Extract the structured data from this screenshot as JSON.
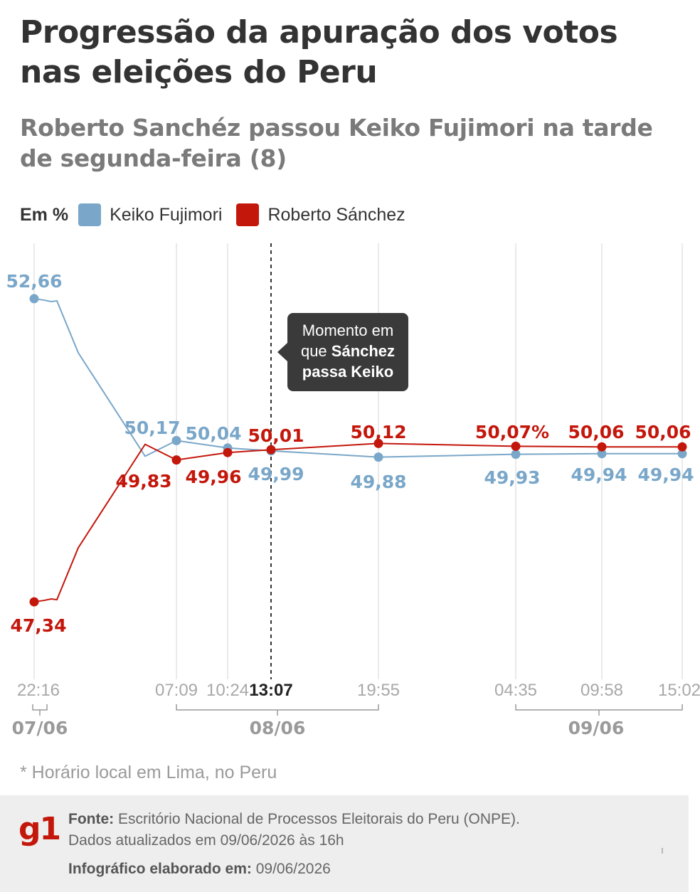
{
  "title": "Progressão da apuração dos votos nas eleições do Peru",
  "subtitle": "Roberto Sanchéz passou Keiko Fujimori na tarde de segunda-feira (8)",
  "legend": {
    "unit": "Em %",
    "items": [
      {
        "label": "Keiko Fujimori",
        "color": "#7aa7c9"
      },
      {
        "label": "Roberto Sánchez",
        "color": "#c4170c"
      }
    ]
  },
  "annotation": {
    "line1": "Momento em",
    "line2_prefix": "que ",
    "line2_bold": "Sánchez",
    "line3_bold": "passa Keiko"
  },
  "chart_data": {
    "type": "line",
    "title": "Progressão da apuração dos votos nas eleições do Peru",
    "ylabel": "Em %",
    "x_labels": [
      {
        "label": "22:16",
        "date": "07/06"
      },
      {
        "label": "07:09",
        "date": "08/06"
      },
      {
        "label": "10:24",
        "date": "08/06"
      },
      {
        "label": "13:07",
        "date": "08/06",
        "highlight": true
      },
      {
        "label": "19:55",
        "date": "08/06"
      },
      {
        "label": "04:35",
        "date": "09/06"
      },
      {
        "label": "09:58",
        "date": "09/06"
      },
      {
        "label": "15:02",
        "date": "09/06"
      }
    ],
    "date_groups": [
      "07/06",
      "08/06",
      "09/06"
    ],
    "series": [
      {
        "name": "Keiko Fujimori",
        "color": "#7aa7c9",
        "points": [
          {
            "x": "07/06 22:16",
            "y": 52.66,
            "label": "52,66"
          },
          {
            "x": "08/06 07:09",
            "y": 50.17,
            "label": "50,17"
          },
          {
            "x": "08/06 10:24",
            "y": 50.04,
            "label": "50,04"
          },
          {
            "x": "08/06 13:07",
            "y": 49.99,
            "label": "49,99"
          },
          {
            "x": "08/06 19:55",
            "y": 49.88,
            "label": "49,88"
          },
          {
            "x": "09/06 04:35",
            "y": 49.93,
            "label": "49,93"
          },
          {
            "x": "09/06 09:58",
            "y": 49.94,
            "label": "49,94"
          },
          {
            "x": "09/06 15:02",
            "y": 49.94,
            "label": "49,94"
          }
        ]
      },
      {
        "name": "Roberto Sánchez",
        "color": "#c4170c",
        "points": [
          {
            "x": "07/06 22:16",
            "y": 47.34,
            "label": "47,34"
          },
          {
            "x": "08/06 07:09",
            "y": 49.83,
            "label": "49,83"
          },
          {
            "x": "08/06 10:24",
            "y": 49.96,
            "label": "49,96"
          },
          {
            "x": "08/06 13:07",
            "y": 50.01,
            "label": "50,01"
          },
          {
            "x": "08/06 19:55",
            "y": 50.12,
            "label": "50,12"
          },
          {
            "x": "09/06 04:35",
            "y": 50.07,
            "label": "50,07%"
          },
          {
            "x": "09/06 09:58",
            "y": 50.06,
            "label": "50,06"
          },
          {
            "x": "09/06 15:02",
            "y": 50.06,
            "label": "50,06"
          }
        ]
      }
    ],
    "crossover": "08/06 13:07",
    "grid": "vertical"
  },
  "footnote": "* Horário local em Lima, no Peru",
  "footer": {
    "logo": "g1",
    "source_label": "Fonte:",
    "source_text": " Escritório Nacional de Processos Eleitorais do Peru (ONPE).",
    "updated": "Dados atualizados em 09/06/2026 às 16h",
    "made_label": "Infográfico elaborado em:",
    "made_date": " 09/06/2026"
  }
}
